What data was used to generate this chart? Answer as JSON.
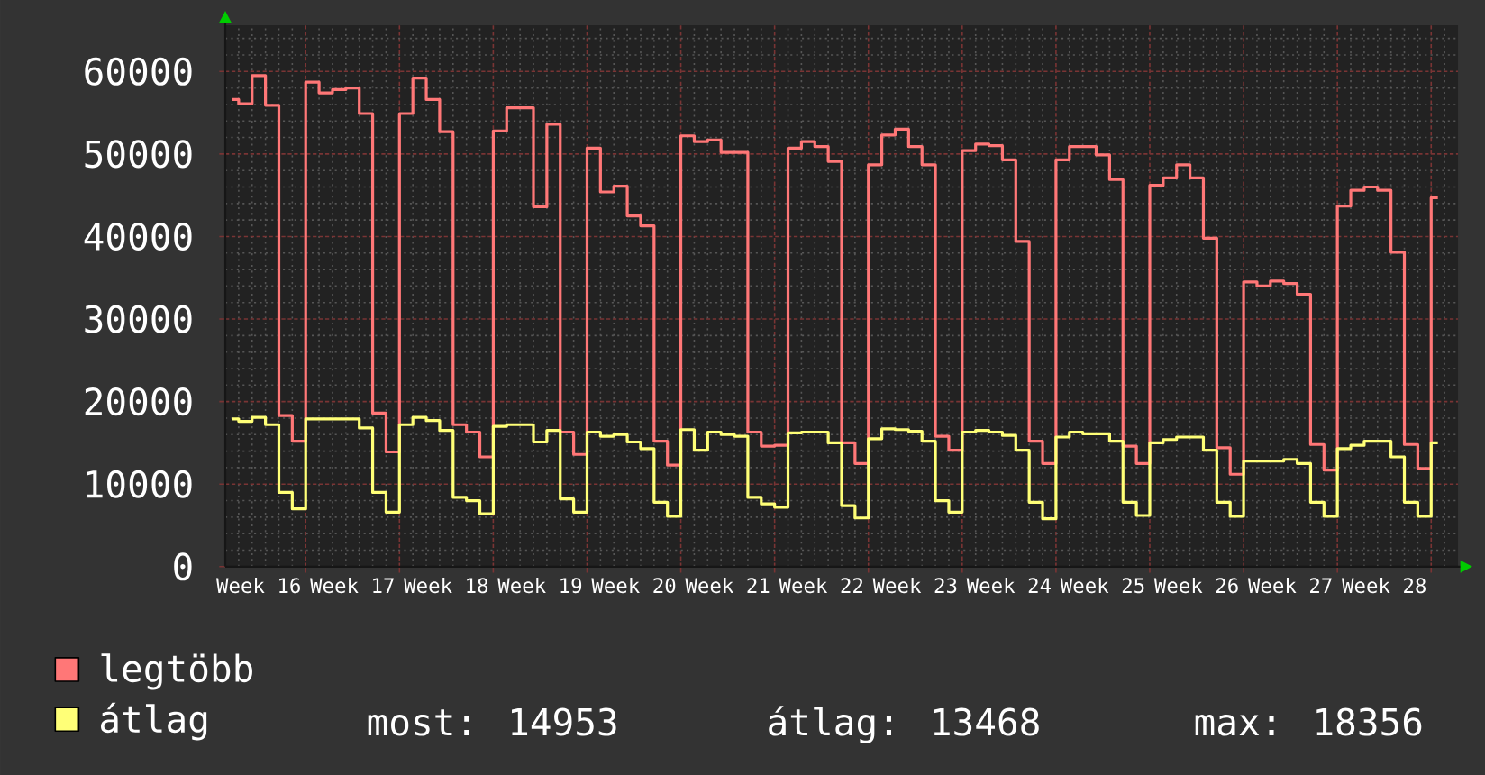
{
  "chart_data": {
    "type": "step",
    "ylim": [
      0,
      65600
    ],
    "categories": [
      null,
      null,
      "Week 16",
      null,
      null,
      null,
      null,
      null,
      null,
      "Week 17",
      null,
      null,
      null,
      null,
      null,
      null,
      "Week 18",
      null,
      null,
      null,
      null,
      null,
      null,
      "Week 19",
      null,
      null,
      null,
      null,
      null,
      null,
      "Week 20",
      null,
      null,
      null,
      null,
      null,
      null,
      "Week 21",
      null,
      null,
      null,
      null,
      null,
      null,
      "Week 22",
      null,
      null,
      null,
      null,
      null,
      null,
      "Week 23",
      null,
      null,
      null,
      null,
      null,
      null,
      "Week 24",
      null,
      null,
      null,
      null,
      null,
      null,
      "Week 25",
      null,
      null,
      null,
      null,
      null,
      null,
      "Week 26",
      null,
      null,
      null,
      null,
      null,
      null,
      "Week 27",
      null,
      null,
      null,
      null,
      null,
      null,
      "Week 28",
      null,
      null,
      null,
      null,
      null
    ],
    "yticks": [
      0,
      10000,
      20000,
      30000,
      40000,
      50000,
      60000
    ],
    "grid": true,
    "legend": "bottom left",
    "annotations": [
      "most: 14953",
      "átlag: 13468",
      "max: 18356"
    ],
    "series": [
      {
        "name": "legtöbb",
        "color": "#ff7777",
        "values": [
          56600,
          56100,
          59500,
          55900,
          18300,
          15200,
          58700,
          57400,
          57800,
          58000,
          54900,
          18600,
          13900,
          54900,
          59200,
          56600,
          52700,
          17200,
          16300,
          13300,
          52800,
          55600,
          55600,
          43600,
          53600,
          16300,
          13600,
          50700,
          45400,
          46100,
          42500,
          41300,
          15200,
          12300,
          52200,
          51500,
          51700,
          50200,
          50200,
          16300,
          14600,
          14700,
          50700,
          51500,
          50900,
          49100,
          15000,
          12500,
          48700,
          52300,
          53000,
          50900,
          48700,
          15800,
          14100,
          50400,
          51200,
          51000,
          49300,
          39400,
          15200,
          12500,
          49300,
          50900,
          50900,
          49900,
          46900,
          14600,
          12500,
          46200,
          47100,
          48700,
          47100,
          39800,
          14400,
          11200,
          34500,
          34000,
          34600,
          34300,
          33000,
          14800,
          11700,
          43700,
          45600,
          46000,
          45600,
          38100,
          14800,
          11900,
          44700,
          null
        ]
      },
      {
        "name": "átlag",
        "color": "#ffff77",
        "values": [
          17900,
          17600,
          18100,
          17200,
          9000,
          7000,
          17900,
          17900,
          17900,
          17900,
          16800,
          9000,
          6600,
          17200,
          18100,
          17700,
          16500,
          8400,
          8000,
          6400,
          17000,
          17200,
          17200,
          15100,
          16500,
          8200,
          6600,
          16300,
          15800,
          16000,
          15100,
          14300,
          7800,
          6100,
          16600,
          14100,
          16300,
          16000,
          15800,
          8400,
          7600,
          7200,
          16200,
          16300,
          16300,
          15000,
          7400,
          5900,
          15500,
          16700,
          16600,
          16400,
          15200,
          8000,
          6600,
          16300,
          16500,
          16300,
          15900,
          14100,
          7800,
          5800,
          15700,
          16300,
          16100,
          16100,
          15200,
          7800,
          6200,
          15000,
          15400,
          15700,
          15700,
          14100,
          7800,
          6100,
          12800,
          12800,
          12800,
          13000,
          12500,
          7800,
          6100,
          14300,
          14700,
          15200,
          15200,
          13300,
          7800,
          6100,
          15000,
          null
        ]
      }
    ]
  }
}
